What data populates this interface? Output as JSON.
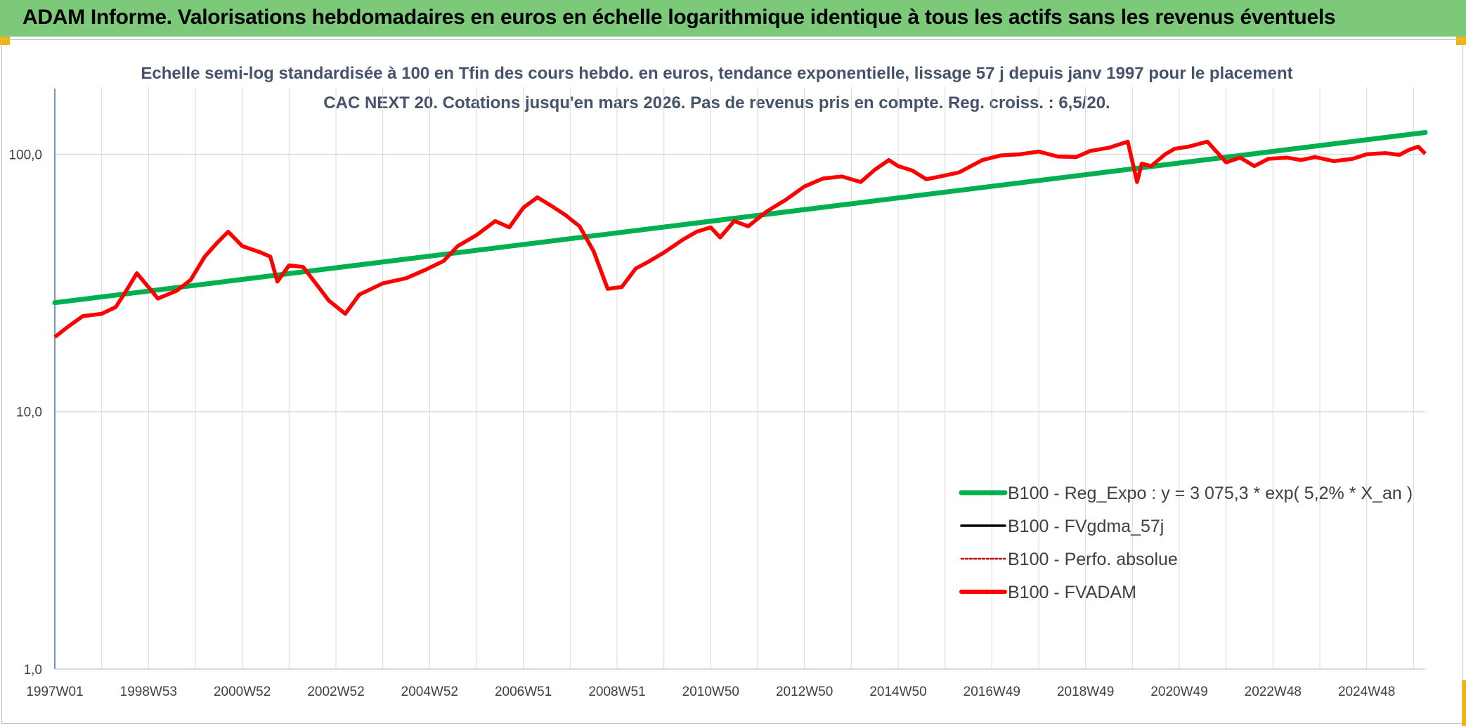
{
  "header": {
    "title": "ADAM Informe. Valorisations hebdomadaires en euros en échelle logarithmique identique à tous les actifs sans les revenus éventuels"
  },
  "colors": {
    "header_bg": "#7dc97a",
    "corner_accent": "#f2b400",
    "regression": "#00b050",
    "smoothed": "#000000",
    "absolute_perf": "#c00000",
    "fvadam": "#ff0000",
    "axis": "#4472c4",
    "grid": "#d9d9d9"
  },
  "chart_data": {
    "type": "line",
    "title": "Echelle semi-log standardisée à 100 en Tfin des cours hebdo. en euros, tendance exponentielle, lissage 57 j depuis janv 1997 pour le placement CAC NEXT 20. Cotations jusqu'en mars 2026. Pas de revenus pris en compte. Reg. croiss. : 6,5/20.",
    "y_scale": "log",
    "ylim": [
      1,
      180
    ],
    "y_ticks": [
      "1,0",
      "10,0",
      "100,0"
    ],
    "x_tick_labels": [
      "1997W01",
      "1998W53",
      "2000W52",
      "2002W52",
      "2004W52",
      "2006W51",
      "2008W51",
      "2010W50",
      "2012W50",
      "2014W50",
      "2016W49",
      "2018W49",
      "2020W49",
      "2022W48",
      "2024W48"
    ],
    "x_range": [
      1997.0,
      2026.25
    ],
    "grid": true,
    "legend_position": "bottom-right",
    "series": [
      {
        "name": "B100 - Reg_Expo : y = 3 075,3 * exp( 5,2% *  X_an )",
        "style": "regression",
        "x": [
          1997.0,
          2026.25
        ],
        "values": [
          26.5,
          121.5
        ]
      },
      {
        "name": "B100 - FVgdma_57j",
        "style": "smoothed"
      },
      {
        "name": "B100 - Perfo. absolue",
        "style": "dotted"
      },
      {
        "name": "B100 - FVADAM",
        "style": "main",
        "x": [
          1997.0,
          1997.3,
          1997.6,
          1998.0,
          1998.3,
          1998.55,
          1998.75,
          1998.9,
          1999.2,
          1999.6,
          1999.9,
          2000.2,
          2000.45,
          2000.7,
          2001.0,
          2001.4,
          2001.6,
          2001.75,
          2002.0,
          2002.3,
          2002.6,
          2002.85,
          2003.2,
          2003.5,
          2004.0,
          2004.5,
          2004.9,
          2005.3,
          2005.6,
          2006.0,
          2006.4,
          2006.7,
          2007.0,
          2007.3,
          2007.6,
          2007.9,
          2008.2,
          2008.5,
          2008.8,
          2009.1,
          2009.4,
          2009.7,
          2010.0,
          2010.4,
          2010.7,
          2011.0,
          2011.2,
          2011.5,
          2011.8,
          2012.2,
          2012.6,
          2013.0,
          2013.4,
          2013.8,
          2014.2,
          2014.5,
          2014.8,
          2015.0,
          2015.3,
          2015.6,
          2015.9,
          2016.3,
          2016.8,
          2017.2,
          2017.6,
          2018.0,
          2018.4,
          2018.8,
          2019.1,
          2019.5,
          2019.9,
          2020.1,
          2020.2,
          2020.4,
          2020.7,
          2020.9,
          2021.2,
          2021.6,
          2022.0,
          2022.3,
          2022.6,
          2022.9,
          2023.3,
          2023.6,
          2023.9,
          2024.3,
          2024.7,
          2025.0,
          2025.4,
          2025.7,
          2025.9,
          2026.1,
          2026.25
        ],
        "values": [
          19.5,
          21.5,
          23.5,
          24.0,
          25.5,
          30.0,
          34.5,
          32.0,
          27.5,
          29.5,
          32.5,
          40.0,
          45.0,
          50.0,
          44.0,
          41.5,
          40.0,
          32.0,
          37.0,
          36.5,
          31.0,
          27.0,
          24.0,
          28.5,
          31.5,
          33.0,
          35.5,
          38.5,
          44.0,
          48.5,
          55.0,
          52.0,
          62.0,
          68.0,
          63.0,
          58.0,
          52.5,
          42.0,
          30.0,
          30.5,
          36.0,
          38.5,
          41.5,
          46.5,
          50.0,
          52.0,
          47.5,
          55.0,
          52.5,
          60.0,
          66.5,
          75.0,
          80.5,
          82.0,
          78.0,
          87.0,
          95.0,
          90.0,
          86.5,
          80.0,
          82.0,
          85.0,
          95.0,
          99.0,
          100.0,
          102.5,
          98.0,
          97.5,
          103.0,
          106.0,
          112.0,
          78.0,
          92.0,
          90.0,
          100.0,
          105.0,
          107.0,
          112.0,
          93.0,
          97.0,
          90.0,
          96.0,
          97.0,
          95.0,
          97.5,
          94.0,
          96.0,
          100.0,
          101.0,
          99.5,
          104.0,
          107.0,
          100.5
        ]
      }
    ]
  }
}
